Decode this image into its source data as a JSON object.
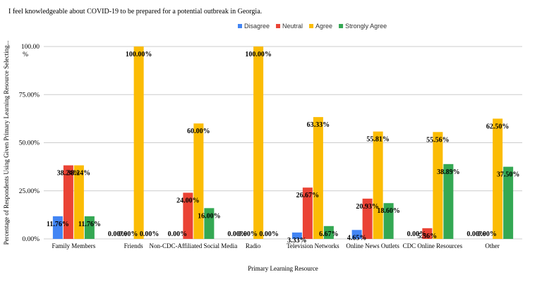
{
  "chart_data": {
    "type": "bar",
    "title": "I feel knowledgeable about COVID-19 to be prepared for a potential outbreak in Georgia.",
    "xlabel": "Primary Learning Resource",
    "ylabel": "Percentage of Respondents Using Given Primary Learning Resource Selecting...",
    "ylim": [
      0,
      100
    ],
    "yticks": [
      0,
      25,
      50,
      75,
      100
    ],
    "ytick_labels": [
      "0.00%",
      "25.00%",
      "50.00%",
      "75.00%",
      "100.00\n%"
    ],
    "grid": true,
    "legend_position": "top-right",
    "categories": [
      "Family Members",
      "Friends",
      "Non-CDC-Affiliated Social Media",
      "Radio",
      "Television Networks",
      "Online News Outlets",
      "CDC Online Resources",
      "Other"
    ],
    "series": [
      {
        "name": "Disagree",
        "color": "#4285f4",
        "values": [
          11.76,
          0,
          0,
          0,
          3.33,
          4.65,
          0,
          0
        ],
        "labels": [
          "11.76%",
          "0.00%",
          "0.00%",
          "0.00%",
          "3.33%",
          "4.65%",
          "0.00%",
          "0.00%"
        ]
      },
      {
        "name": "Neutral",
        "color": "#ea4335",
        "values": [
          38.24,
          0,
          24.0,
          0,
          26.67,
          20.93,
          5.56,
          0
        ],
        "labels": [
          "38.24%",
          "0.00%",
          "24.00%",
          "0.00%",
          "26.67%",
          "20.93%",
          "5.56%",
          "0.00%"
        ]
      },
      {
        "name": "Agree",
        "color": "#fbbc04",
        "values": [
          38.24,
          100.0,
          60.0,
          100.0,
          63.33,
          55.81,
          55.56,
          62.5
        ],
        "labels": [
          "38.24%",
          "100.00%",
          "60.00%",
          "100.00%",
          "63.33%",
          "55.81%",
          "55.56%",
          "62.50%"
        ]
      },
      {
        "name": "Strongly Agree",
        "color": "#34a853",
        "values": [
          11.76,
          0,
          16.0,
          0,
          6.67,
          18.6,
          38.89,
          37.5
        ],
        "labels": [
          "11.76%",
          "0.00%",
          "16.00%",
          "0.00%",
          "6.67%",
          "18.60%",
          "38.89%",
          "37.50%"
        ]
      }
    ]
  }
}
